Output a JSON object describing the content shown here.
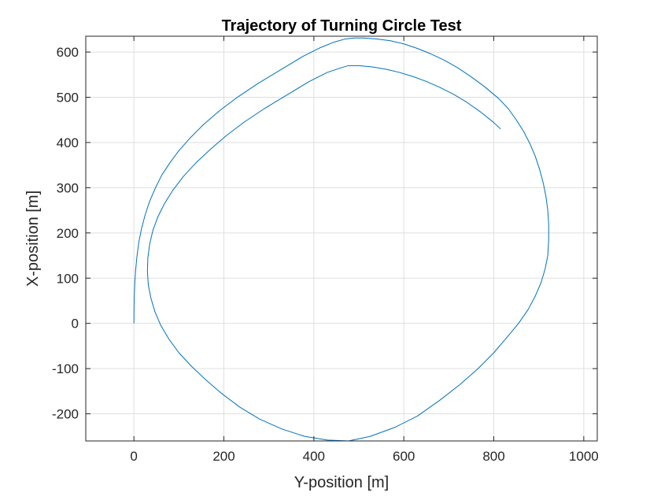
{
  "chart_data": {
    "type": "line",
    "title": "Trajectory of Turning Circle Test",
    "xlabel": "Y-position [m]",
    "ylabel": "X-position [m]",
    "xlim": [
      -107,
      1030
    ],
    "ylim": [
      -260,
      635
    ],
    "xticks": [
      0,
      200,
      400,
      600,
      800,
      1000
    ],
    "yticks": [
      -200,
      -100,
      0,
      100,
      200,
      300,
      400,
      500,
      600
    ],
    "grid": true,
    "legend": "none",
    "series": [
      {
        "color": "#0072BD",
        "x": [
          0,
          0.2,
          0.8,
          2,
          4,
          7,
          11,
          17,
          25,
          35,
          48,
          62,
          80,
          100,
          125,
          155,
          190,
          230,
          275,
          325,
          375,
          415,
          445,
          470,
          490,
          510,
          540,
          570,
          600,
          630,
          660,
          690,
          720,
          750,
          780,
          810,
          832,
          850,
          866,
          880,
          892,
          902,
          910,
          916,
          920,
          922,
          922,
          920,
          914,
          905,
          892,
          876,
          855,
          830,
          800,
          765,
          725,
          680,
          630,
          580,
          525,
          477,
          430,
          380,
          330,
          280,
          235,
          195,
          160,
          128,
          100,
          78,
          60,
          47,
          38,
          32,
          30,
          31,
          35,
          42,
          53,
          68,
          87,
          110,
          138,
          170,
          205,
          245,
          290,
          340,
          390,
          430,
          460,
          477,
          500,
          530,
          560,
          590,
          620,
          650,
          680,
          710,
          740,
          770,
          800,
          815
        ],
        "y": [
          0,
          30,
          60,
          90,
          120,
          150,
          180,
          210,
          240,
          270,
          300,
          328,
          355,
          382,
          410,
          440,
          470,
          500,
          530,
          560,
          590,
          610,
          622,
          629,
          631,
          631,
          629,
          625,
          618,
          608,
          596,
          582,
          565,
          545,
          523,
          498,
          475,
          450,
          425,
          398,
          370,
          340,
          310,
          280,
          250,
          220,
          185,
          150,
          120,
          90,
          60,
          30,
          0,
          -30,
          -65,
          -100,
          -135,
          -170,
          -205,
          -230,
          -250,
          -260,
          -258,
          -250,
          -234,
          -212,
          -185,
          -155,
          -125,
          -95,
          -65,
          -35,
          -5,
          25,
          55,
          85,
          115,
          145,
          175,
          205,
          235,
          265,
          295,
          325,
          355,
          385,
          415,
          445,
          475,
          505,
          535,
          555,
          565,
          570,
          570,
          567,
          562,
          555,
          546,
          535,
          522,
          507,
          489,
          468,
          444,
          430
        ]
      }
    ]
  }
}
